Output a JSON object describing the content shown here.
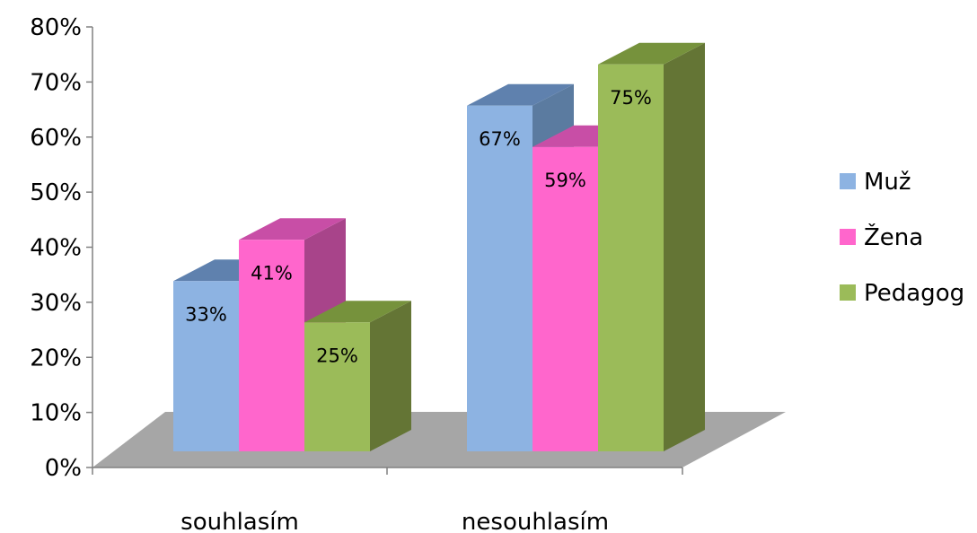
{
  "chart_data": {
    "type": "bar",
    "title": "",
    "xlabel": "",
    "ylabel": "",
    "categories": [
      "souhlasím",
      "nesouhlasím"
    ],
    "series": [
      {
        "name": "Muž",
        "values": [
          0.33,
          0.67
        ],
        "labels": [
          "33%",
          "67%"
        ]
      },
      {
        "name": "Žena",
        "values": [
          0.41,
          0.59
        ],
        "labels": [
          "41%",
          "59%"
        ]
      },
      {
        "name": "Pedagog",
        "values": [
          0.25,
          0.75
        ],
        "labels": [
          "25%",
          "75%"
        ]
      }
    ],
    "ylim": [
      0,
      0.8
    ],
    "yticks": [
      "0%",
      "10%",
      "20%",
      "30%",
      "40%",
      "50%",
      "60%",
      "70%",
      "80%"
    ],
    "grid": false,
    "legend_position": "right",
    "style": "3d-clustered-column"
  },
  "colors": {
    "series": [
      {
        "front": "#8DB3E2",
        "side": "#5B7BA0",
        "top": "#5F81AE"
      },
      {
        "front": "#FF66CC",
        "side": "#A8448A",
        "top": "#C84EA6"
      },
      {
        "front": "#9BBB59",
        "side": "#647535",
        "top": "#76923C"
      }
    ],
    "floor": "#A6A6A6",
    "axis": "#808080"
  }
}
